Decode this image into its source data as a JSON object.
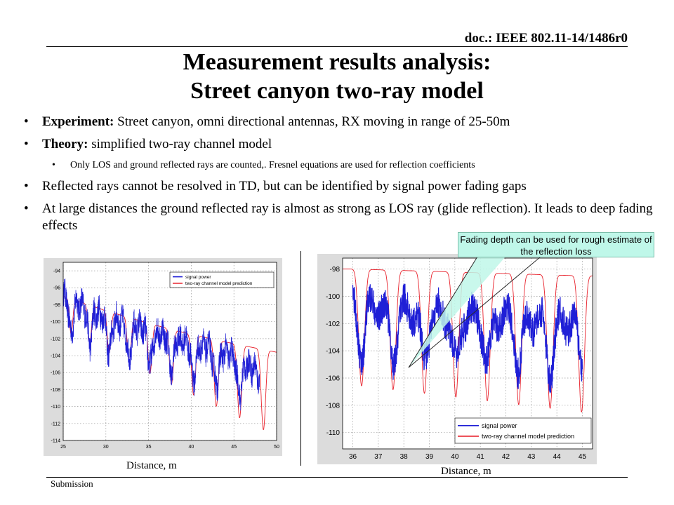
{
  "header": {
    "doc_id": "doc.: IEEE 802.11-14/1486r0"
  },
  "title": {
    "line1": "Measurement results analysis:",
    "line2": "Street canyon two-ray model"
  },
  "bullets": [
    {
      "label": "Experiment:",
      "text": " Street canyon, omni directional antennas, RX moving in range of 25-50m"
    },
    {
      "label": "Theory:",
      "text": " simplified two-ray channel model"
    },
    {
      "sub": "Only LOS and ground reflected rays are counted,. Fresnel equations are used for reflection coefficients"
    },
    {
      "text": "Reflected rays cannot be resolved in TD, but can be identified by signal power fading gaps"
    },
    {
      "text": "At  large distances the ground reflected ray is almost as strong as LOS ray (glide reflection). It leads to deep fading effects"
    }
  ],
  "callout": "Fading depth can be used for rough estimate of the reflection loss",
  "footer": {
    "submission": "Submission"
  },
  "colors": {
    "signal": "#1f1fd6",
    "model": "#e8212b",
    "callout_fill": "#bff7e9"
  },
  "chart_data": [
    {
      "type": "line",
      "x_range": [
        25,
        50
      ],
      "y_range": [
        -114,
        -93
      ],
      "xticks": [
        "25",
        "30",
        "35",
        "40",
        "45",
        "50"
      ],
      "yticks": [
        "-94",
        "-96",
        "-98",
        "-100",
        "-102",
        "-104",
        "-106",
        "-108",
        "-110",
        "-112",
        "-114"
      ],
      "xlabel": "Distance, m",
      "grid": true,
      "legend_position": "top-right",
      "series": [
        {
          "name": "signal power",
          "color": "#1f1fd6",
          "envelope": {
            "x": [
              25,
              30,
              35,
              40,
              45,
              48
            ],
            "mean": [
              -97,
              -99.5,
              -101,
              -102.5,
              -104,
              -106
            ]
          }
        },
        {
          "name": "two-ray channel model prediction",
          "color": "#e8212b",
          "envelope": {
            "x": [
              25,
              30,
              35,
              40,
              45,
              50
            ],
            "peak": [
              -97,
              -98.7,
              -100.2,
              -101.5,
              -102.6,
              -103.6
            ],
            "dip": [
              -101,
              -103.5,
              -106,
              -108.5,
              -111,
              -113.5
            ]
          }
        }
      ]
    },
    {
      "type": "line",
      "x_range": [
        35.6,
        45.4
      ],
      "y_range": [
        -111.2,
        -97.2
      ],
      "xticks": [
        "36",
        "37",
        "38",
        "39",
        "40",
        "41",
        "42",
        "43",
        "44",
        "45"
      ],
      "yticks": [
        "-98",
        "-100",
        "-102",
        "-104",
        "-106",
        "-108",
        "-110"
      ],
      "xlabel": "Distance, m",
      "grid": true,
      "legend_position": "bottom-right",
      "series": [
        {
          "name": "signal power",
          "color": "#1f1fd6",
          "envelope": {
            "x": [
              36,
              38,
              40,
              42,
              44,
              45
            ],
            "mean": [
              -100.5,
              -101,
              -101.5,
              -101.5,
              -102,
              -101.5
            ]
          }
        },
        {
          "name": "two-ray channel model prediction",
          "color": "#e8212b",
          "envelope": {
            "x": [
              36,
              45
            ],
            "peak": [
              -98,
              -98.5
            ],
            "dip": [
              -106.5,
              -108.5
            ]
          }
        }
      ]
    }
  ]
}
